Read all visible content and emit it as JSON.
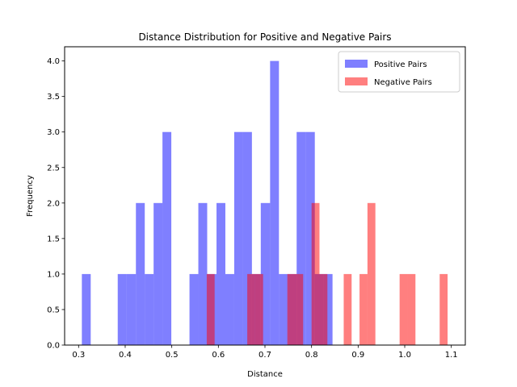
{
  "chart_data": {
    "type": "bar",
    "title": "Distance Distribution for Positive and Negative Pairs",
    "xlabel": "Distance",
    "ylabel": "Frequency",
    "xlim": [
      0.27,
      1.13
    ],
    "ylim": [
      0,
      4.2
    ],
    "xticks": [
      "0.3",
      "0.4",
      "0.5",
      "0.6",
      "0.7",
      "0.8",
      "0.9",
      "1.0",
      "1.1"
    ],
    "yticks": [
      "0.0",
      "0.5",
      "1.0",
      "1.5",
      "2.0",
      "2.5",
      "3.0",
      "3.5",
      "4.0"
    ],
    "grid": false,
    "legend_position": "top-right",
    "series": [
      {
        "name": "Positive Pairs",
        "color": "#0000ff",
        "opacity": 0.5,
        "bins": [
          {
            "x0": 0.307,
            "x1": 0.326,
            "count": 1
          },
          {
            "x0": 0.384,
            "x1": 0.403,
            "count": 1
          },
          {
            "x0": 0.403,
            "x1": 0.423,
            "count": 1
          },
          {
            "x0": 0.423,
            "x1": 0.442,
            "count": 2
          },
          {
            "x0": 0.442,
            "x1": 0.461,
            "count": 1
          },
          {
            "x0": 0.461,
            "x1": 0.48,
            "count": 2
          },
          {
            "x0": 0.48,
            "x1": 0.499,
            "count": 3
          },
          {
            "x0": 0.538,
            "x1": 0.557,
            "count": 1
          },
          {
            "x0": 0.557,
            "x1": 0.576,
            "count": 2
          },
          {
            "x0": 0.576,
            "x1": 0.596,
            "count": 1
          },
          {
            "x0": 0.596,
            "x1": 0.615,
            "count": 2
          },
          {
            "x0": 0.615,
            "x1": 0.634,
            "count": 1
          },
          {
            "x0": 0.634,
            "x1": 0.653,
            "count": 3
          },
          {
            "x0": 0.653,
            "x1": 0.672,
            "count": 3
          },
          {
            "x0": 0.672,
            "x1": 0.691,
            "count": 1
          },
          {
            "x0": 0.691,
            "x1": 0.711,
            "count": 2
          },
          {
            "x0": 0.711,
            "x1": 0.73,
            "count": 4
          },
          {
            "x0": 0.73,
            "x1": 0.749,
            "count": 1
          },
          {
            "x0": 0.749,
            "x1": 0.768,
            "count": 1
          },
          {
            "x0": 0.768,
            "x1": 0.788,
            "count": 3
          },
          {
            "x0": 0.788,
            "x1": 0.807,
            "count": 3
          },
          {
            "x0": 0.807,
            "x1": 0.826,
            "count": 1
          },
          {
            "x0": 0.826,
            "x1": 0.845,
            "count": 1
          }
        ]
      },
      {
        "name": "Negative Pairs",
        "color": "#ff0000",
        "opacity": 0.5,
        "bins": [
          {
            "x0": 0.575,
            "x1": 0.592,
            "count": 1
          },
          {
            "x0": 0.662,
            "x1": 0.679,
            "count": 1
          },
          {
            "x0": 0.679,
            "x1": 0.696,
            "count": 1
          },
          {
            "x0": 0.748,
            "x1": 0.765,
            "count": 1
          },
          {
            "x0": 0.765,
            "x1": 0.782,
            "count": 1
          },
          {
            "x0": 0.8,
            "x1": 0.817,
            "count": 2
          },
          {
            "x0": 0.817,
            "x1": 0.834,
            "count": 1
          },
          {
            "x0": 0.869,
            "x1": 0.886,
            "count": 1
          },
          {
            "x0": 0.903,
            "x1": 0.92,
            "count": 1
          },
          {
            "x0": 0.92,
            "x1": 0.937,
            "count": 2
          },
          {
            "x0": 0.989,
            "x1": 1.006,
            "count": 1
          },
          {
            "x0": 1.006,
            "x1": 1.023,
            "count": 1
          },
          {
            "x0": 1.075,
            "x1": 1.092,
            "count": 1
          }
        ]
      }
    ]
  }
}
